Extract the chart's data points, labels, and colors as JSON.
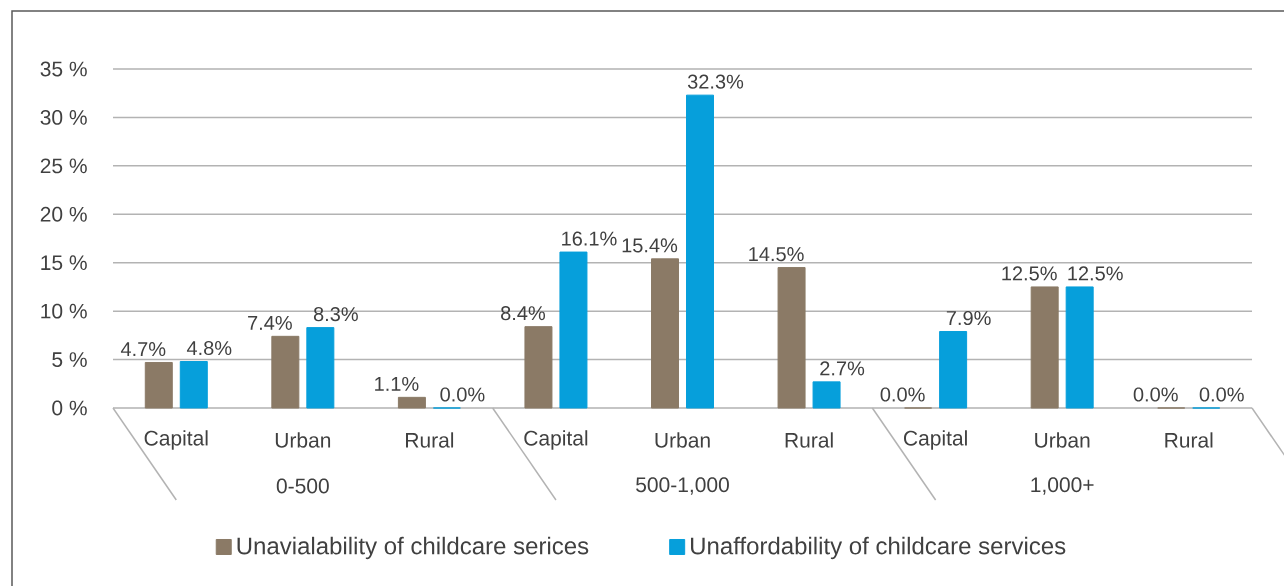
{
  "chart_data": {
    "type": "bar",
    "categories": [
      "Capital",
      "Urban",
      "Rural",
      "Capital",
      "Urban",
      "Rural",
      "Capital",
      "Urban",
      "Rural"
    ],
    "annotations": [
      "0-500",
      "500-1,000",
      "1,000+"
    ],
    "series": [
      {
        "name": "Unavialability of childcare serices",
        "color": "#8b7a66",
        "values": [
          4.7,
          7.4,
          1.1,
          8.4,
          15.4,
          14.5,
          0.0,
          12.5,
          0.0
        ],
        "value_labels": [
          "4.7%",
          "7.4%",
          "1.1%",
          "8.4%",
          "15.4%",
          "14.5%",
          "0.0%",
          "12.5%",
          "0.0%"
        ]
      },
      {
        "name": "Unaffordability of childcare services",
        "color": "#069fdb",
        "values": [
          4.8,
          8.3,
          0.0,
          16.1,
          32.3,
          2.7,
          7.9,
          12.5,
          0.0
        ],
        "value_labels": [
          "4.8%",
          "8.3%",
          "0.0%",
          "16.1%",
          "32.3%",
          "2.7%",
          "7.9%",
          "12.5%",
          "0.0%"
        ]
      }
    ],
    "ylim": [
      0,
      35
    ],
    "yticks": [
      {
        "value": 0,
        "label": "0 %"
      },
      {
        "value": 5,
        "label": "5 %"
      },
      {
        "value": 10,
        "label": "10 %"
      },
      {
        "value": 15,
        "label": "15 %"
      },
      {
        "value": 20,
        "label": "20 %"
      },
      {
        "value": 25,
        "label": "25 %"
      },
      {
        "value": 30,
        "label": "30 %"
      },
      {
        "value": 35,
        "label": "35 %"
      }
    ],
    "grid": "y",
    "legend": "bottom"
  }
}
